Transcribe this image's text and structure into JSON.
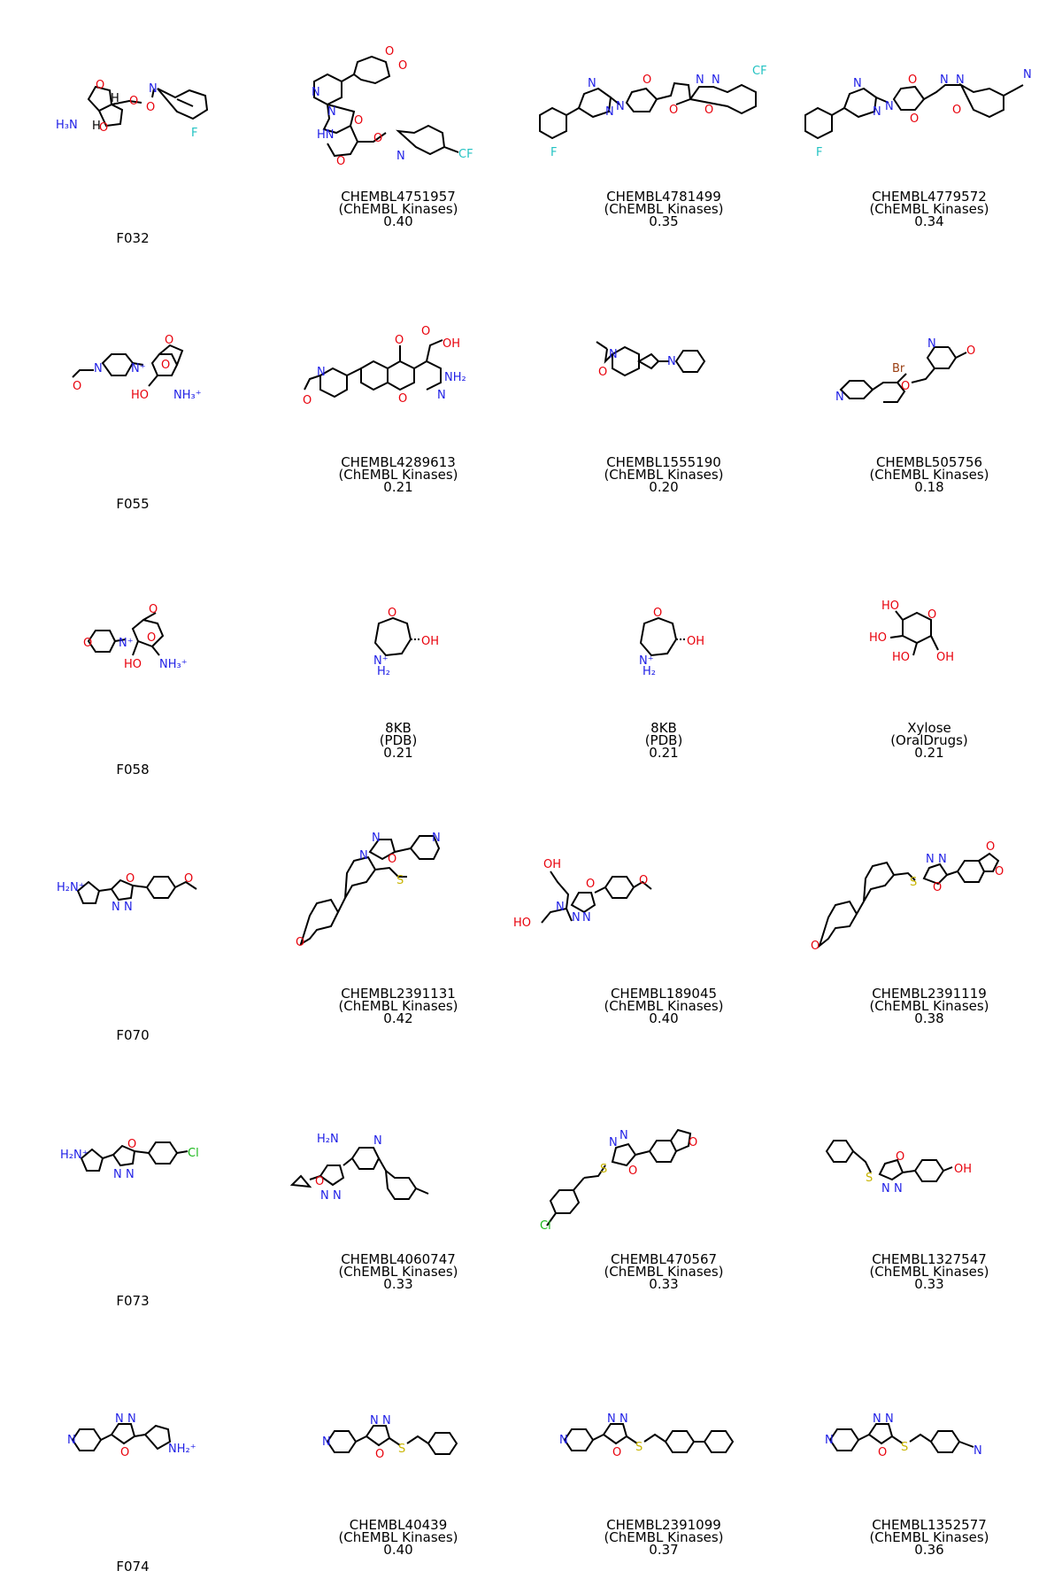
{
  "colors": {
    "carbon": "#000000",
    "oxygen": "#e8000b",
    "nitrogen": "#1f1fe6",
    "fluorine": "#22c2c2",
    "sulfur": "#c8b400",
    "chlorine": "#17b817",
    "bromine": "#9a3e12",
    "background": "#ffffff"
  },
  "rows": [
    {
      "query": {
        "id": "F032"
      },
      "hits": [
        {
          "id": "CHEMBL4751957",
          "source": "(ChEMBL Kinases)",
          "score": "0.40"
        },
        {
          "id": "CHEMBL4781499",
          "source": "(ChEMBL Kinases)",
          "score": "0.35"
        },
        {
          "id": "CHEMBL4779572",
          "source": "(ChEMBL Kinases)",
          "score": "0.34"
        }
      ]
    },
    {
      "query": {
        "id": "F055"
      },
      "hits": [
        {
          "id": "CHEMBL4289613",
          "source": "(ChEMBL Kinases)",
          "score": "0.21"
        },
        {
          "id": "CHEMBL1555190",
          "source": "(ChEMBL Kinases)",
          "score": "0.20"
        },
        {
          "id": "CHEMBL505756",
          "source": "(ChEMBL Kinases)",
          "score": "0.18"
        }
      ]
    },
    {
      "query": {
        "id": "F058"
      },
      "hits": [
        {
          "id": "8KB",
          "source": "(PDB)",
          "score": "0.21"
        },
        {
          "id": "8KB",
          "source": "(PDB)",
          "score": "0.21"
        },
        {
          "id": "Xylose",
          "source": "(OralDrugs)",
          "score": "0.21"
        }
      ]
    },
    {
      "query": {
        "id": "F070"
      },
      "hits": [
        {
          "id": "CHEMBL2391131",
          "source": "(ChEMBL Kinases)",
          "score": "0.42"
        },
        {
          "id": "CHEMBL189045",
          "source": "(ChEMBL Kinases)",
          "score": "0.40"
        },
        {
          "id": "CHEMBL2391119",
          "source": "(ChEMBL Kinases)",
          "score": "0.38"
        }
      ]
    },
    {
      "query": {
        "id": "F073"
      },
      "hits": [
        {
          "id": "CHEMBL4060747",
          "source": "(ChEMBL Kinases)",
          "score": "0.33"
        },
        {
          "id": "CHEMBL470567",
          "source": "(ChEMBL Kinases)",
          "score": "0.33"
        },
        {
          "id": "CHEMBL1327547",
          "source": "(ChEMBL Kinases)",
          "score": "0.33"
        }
      ]
    },
    {
      "query": {
        "id": "F074"
      },
      "hits": [
        {
          "id": "CHEMBL40439",
          "source": "(ChEMBL Kinases)",
          "score": "0.40"
        },
        {
          "id": "CHEMBL2391099",
          "source": "(ChEMBL Kinases)",
          "score": "0.37"
        },
        {
          "id": "CHEMBL1352577",
          "source": "(ChEMBL Kinases)",
          "score": "0.36"
        }
      ]
    }
  ]
}
